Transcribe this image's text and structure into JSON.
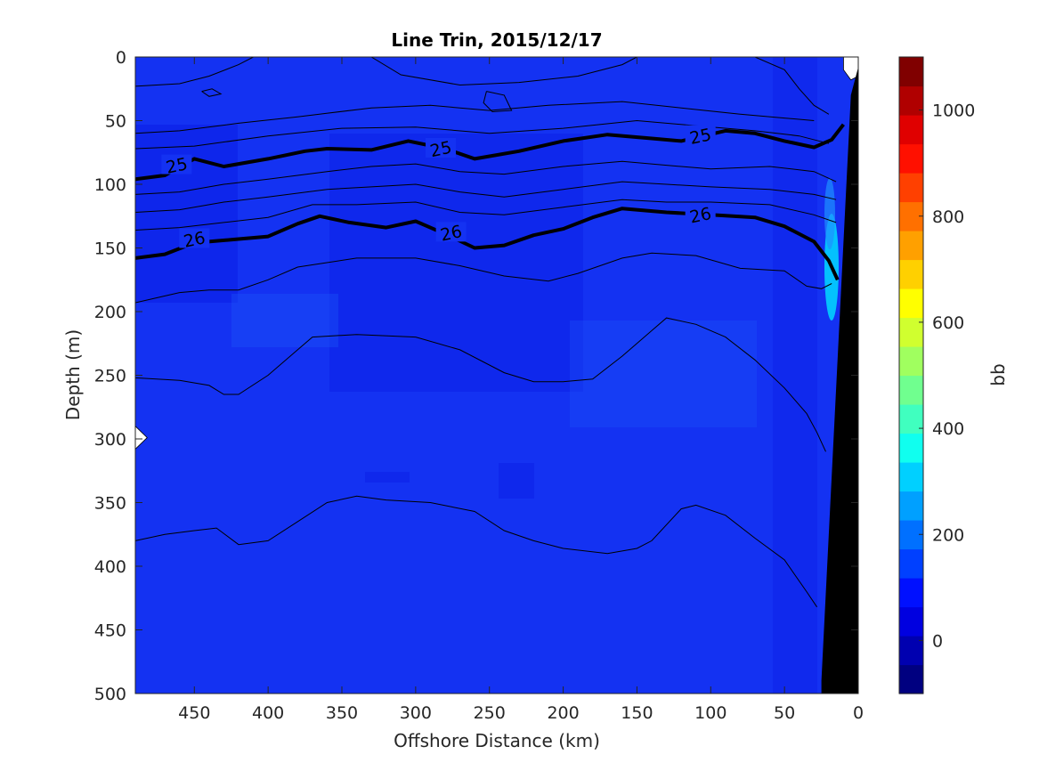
{
  "chart_data": {
    "type": "heatmap",
    "title": "Line Trin, 2015/12/17",
    "xlabel": "Offshore Distance (km)",
    "ylabel": "Depth (m)",
    "colorbar_label": "bb",
    "x_reversed": true,
    "y_reversed": true,
    "xlim": [
      490,
      0
    ],
    "ylim": [
      0,
      500
    ],
    "x_ticks": [
      450,
      400,
      350,
      300,
      250,
      200,
      150,
      100,
      50,
      0
    ],
    "x_tick_labels": [
      "450",
      "400",
      "350",
      "300",
      "250",
      "200",
      "150",
      "100",
      "50",
      "0"
    ],
    "y_ticks": [
      0,
      50,
      100,
      150,
      200,
      250,
      300,
      350,
      400,
      450,
      500
    ],
    "y_tick_labels": [
      "0",
      "50",
      "100",
      "150",
      "200",
      "250",
      "300",
      "350",
      "400",
      "450",
      "500"
    ],
    "colorbar_range": [
      -100,
      1100
    ],
    "colorbar_ticks": [
      0,
      200,
      400,
      600,
      800,
      1000
    ],
    "colorbar_tick_labels": [
      "0",
      "200",
      "400",
      "600",
      "800",
      "1000"
    ],
    "colorbar_colors": [
      "#000080",
      "#0000b0",
      "#0000e0",
      "#0010ff",
      "#0040ff",
      "#0070ff",
      "#00a0ff",
      "#00d0ff",
      "#10ffef",
      "#40ffbf",
      "#70ff8f",
      "#a0ff5f",
      "#d0ff2f",
      "#ffff00",
      "#ffd000",
      "#ffa000",
      "#ff7000",
      "#ff4000",
      "#ff1000",
      "#e00000",
      "#b00000",
      "#800000"
    ],
    "field_colors": {
      "dominant": "#1432f2",
      "darker": "#0a1ee6",
      "lighter": "#1e5af8",
      "bright": "#00e5ff"
    },
    "contour_levels": [
      {
        "label": "25",
        "bold": true,
        "points": [
          [
            490,
            96
          ],
          [
            470,
            93
          ],
          [
            450,
            80
          ],
          [
            430,
            86
          ],
          [
            400,
            80
          ],
          [
            375,
            74
          ],
          [
            360,
            72
          ],
          [
            330,
            73
          ],
          [
            305,
            66
          ],
          [
            280,
            72
          ],
          [
            260,
            80
          ],
          [
            230,
            74
          ],
          [
            200,
            66
          ],
          [
            170,
            61
          ],
          [
            140,
            64
          ],
          [
            120,
            66
          ],
          [
            90,
            58
          ],
          [
            70,
            60
          ],
          [
            50,
            66
          ],
          [
            30,
            71
          ],
          [
            18,
            65
          ],
          [
            10,
            53
          ]
        ],
        "label_positions": [
          [
            462,
            85
          ],
          [
            283,
            72
          ],
          [
            107,
            62
          ]
        ]
      },
      {
        "label": "26",
        "bold": true,
        "points": [
          [
            490,
            158
          ],
          [
            470,
            155
          ],
          [
            450,
            146
          ],
          [
            420,
            143
          ],
          [
            400,
            141
          ],
          [
            380,
            131
          ],
          [
            365,
            125
          ],
          [
            345,
            130
          ],
          [
            320,
            134
          ],
          [
            300,
            129
          ],
          [
            280,
            139
          ],
          [
            260,
            150
          ],
          [
            240,
            148
          ],
          [
            220,
            140
          ],
          [
            200,
            135
          ],
          [
            180,
            126
          ],
          [
            160,
            119
          ],
          [
            130,
            122
          ],
          [
            100,
            124
          ],
          [
            70,
            126
          ],
          [
            50,
            133
          ],
          [
            30,
            145
          ],
          [
            20,
            160
          ],
          [
            14,
            175
          ]
        ],
        "label_positions": [
          [
            450,
            143
          ],
          [
            276,
            138
          ],
          [
            107,
            124
          ]
        ]
      }
    ],
    "thin_contours": [
      [
        [
          490,
          23
        ],
        [
          460,
          21
        ],
        [
          440,
          15
        ],
        [
          420,
          6
        ],
        [
          410,
          0
        ]
      ],
      [
        [
          330,
          0
        ],
        [
          310,
          14
        ],
        [
          270,
          22
        ],
        [
          230,
          20
        ],
        [
          190,
          15
        ],
        [
          160,
          6
        ],
        [
          150,
          0
        ]
      ],
      [
        [
          70,
          0
        ],
        [
          50,
          10
        ],
        [
          40,
          25
        ],
        [
          30,
          38
        ],
        [
          20,
          45
        ]
      ],
      [
        [
          490,
          60
        ],
        [
          460,
          58
        ],
        [
          420,
          52
        ],
        [
          380,
          47
        ],
        [
          330,
          40
        ],
        [
          290,
          38
        ],
        [
          250,
          42
        ],
        [
          210,
          38
        ],
        [
          160,
          35
        ],
        [
          120,
          40
        ],
        [
          80,
          45
        ],
        [
          50,
          48
        ],
        [
          30,
          50
        ]
      ],
      [
        [
          490,
          72
        ],
        [
          450,
          70
        ],
        [
          400,
          62
        ],
        [
          350,
          56
        ],
        [
          300,
          55
        ],
        [
          250,
          60
        ],
        [
          200,
          56
        ],
        [
          150,
          50
        ],
        [
          110,
          54
        ],
        [
          70,
          58
        ],
        [
          40,
          62
        ],
        [
          20,
          68
        ]
      ],
      [
        [
          490,
          108
        ],
        [
          460,
          106
        ],
        [
          430,
          100
        ],
        [
          400,
          96
        ],
        [
          360,
          90
        ],
        [
          330,
          86
        ],
        [
          300,
          84
        ],
        [
          270,
          90
        ],
        [
          240,
          92
        ],
        [
          200,
          86
        ],
        [
          160,
          82
        ],
        [
          130,
          85
        ],
        [
          100,
          88
        ],
        [
          60,
          86
        ],
        [
          30,
          90
        ],
        [
          15,
          98
        ]
      ],
      [
        [
          490,
          122
        ],
        [
          460,
          120
        ],
        [
          430,
          114
        ],
        [
          400,
          110
        ],
        [
          360,
          104
        ],
        [
          330,
          102
        ],
        [
          300,
          100
        ],
        [
          270,
          106
        ],
        [
          240,
          110
        ],
        [
          200,
          104
        ],
        [
          160,
          98
        ],
        [
          130,
          100
        ],
        [
          100,
          102
        ],
        [
          60,
          104
        ],
        [
          30,
          108
        ],
        [
          15,
          112
        ]
      ],
      [
        [
          490,
          136
        ],
        [
          460,
          134
        ],
        [
          430,
          130
        ],
        [
          400,
          126
        ],
        [
          370,
          116
        ],
        [
          340,
          116
        ],
        [
          300,
          114
        ],
        [
          270,
          122
        ],
        [
          240,
          124
        ],
        [
          200,
          118
        ],
        [
          160,
          112
        ],
        [
          130,
          114
        ],
        [
          100,
          114
        ],
        [
          60,
          116
        ],
        [
          30,
          124
        ],
        [
          15,
          130
        ]
      ],
      [
        [
          490,
          193
        ],
        [
          460,
          185
        ],
        [
          440,
          183
        ],
        [
          420,
          183
        ],
        [
          400,
          175
        ],
        [
          380,
          165
        ],
        [
          340,
          158
        ],
        [
          300,
          158
        ],
        [
          270,
          164
        ],
        [
          240,
          172
        ],
        [
          210,
          176
        ],
        [
          190,
          170
        ],
        [
          160,
          158
        ],
        [
          140,
          154
        ],
        [
          110,
          156
        ],
        [
          80,
          166
        ],
        [
          50,
          168
        ],
        [
          35,
          180
        ],
        [
          25,
          182
        ],
        [
          18,
          178
        ]
      ],
      [
        [
          490,
          252
        ],
        [
          460,
          254
        ],
        [
          440,
          258
        ],
        [
          430,
          265
        ],
        [
          420,
          265
        ],
        [
          400,
          250
        ],
        [
          380,
          230
        ],
        [
          370,
          220
        ],
        [
          340,
          218
        ],
        [
          300,
          220
        ],
        [
          270,
          230
        ],
        [
          240,
          248
        ],
        [
          220,
          255
        ],
        [
          200,
          255
        ],
        [
          180,
          253
        ],
        [
          160,
          235
        ],
        [
          140,
          215
        ],
        [
          130,
          205
        ],
        [
          110,
          210
        ],
        [
          90,
          220
        ],
        [
          70,
          238
        ],
        [
          50,
          260
        ],
        [
          35,
          280
        ],
        [
          28,
          295
        ],
        [
          22,
          310
        ]
      ],
      [
        [
          490,
          380
        ],
        [
          470,
          375
        ],
        [
          450,
          372
        ],
        [
          435,
          370
        ],
        [
          420,
          383
        ],
        [
          400,
          380
        ],
        [
          380,
          365
        ],
        [
          360,
          350
        ],
        [
          340,
          345
        ],
        [
          320,
          348
        ],
        [
          290,
          350
        ],
        [
          260,
          357
        ],
        [
          240,
          372
        ],
        [
          220,
          380
        ],
        [
          200,
          386
        ],
        [
          170,
          390
        ],
        [
          150,
          386
        ],
        [
          140,
          380
        ],
        [
          120,
          355
        ],
        [
          110,
          352
        ],
        [
          90,
          360
        ],
        [
          70,
          378
        ],
        [
          50,
          395
        ],
        [
          35,
          420
        ],
        [
          28,
          432
        ]
      ],
      [
        [
          445,
          27
        ],
        [
          440,
          31
        ],
        [
          432,
          29
        ],
        [
          438,
          25
        ],
        [
          445,
          27
        ]
      ],
      [
        [
          252,
          27
        ],
        [
          240,
          30
        ],
        [
          235,
          42
        ],
        [
          248,
          43
        ],
        [
          254,
          36
        ],
        [
          252,
          27
        ]
      ]
    ],
    "white_regions": [
      [
        [
          490,
          290
        ],
        [
          482,
          299
        ],
        [
          490,
          308
        ]
      ],
      [
        [
          10,
          0
        ],
        [
          0,
          0
        ],
        [
          0,
          15
        ],
        [
          5,
          18
        ],
        [
          10,
          10
        ]
      ]
    ],
    "seafloor_polygon": [
      [
        25,
        500
      ],
      [
        0,
        500
      ],
      [
        0,
        8
      ],
      [
        5,
        30
      ],
      [
        25,
        490
      ]
    ]
  }
}
